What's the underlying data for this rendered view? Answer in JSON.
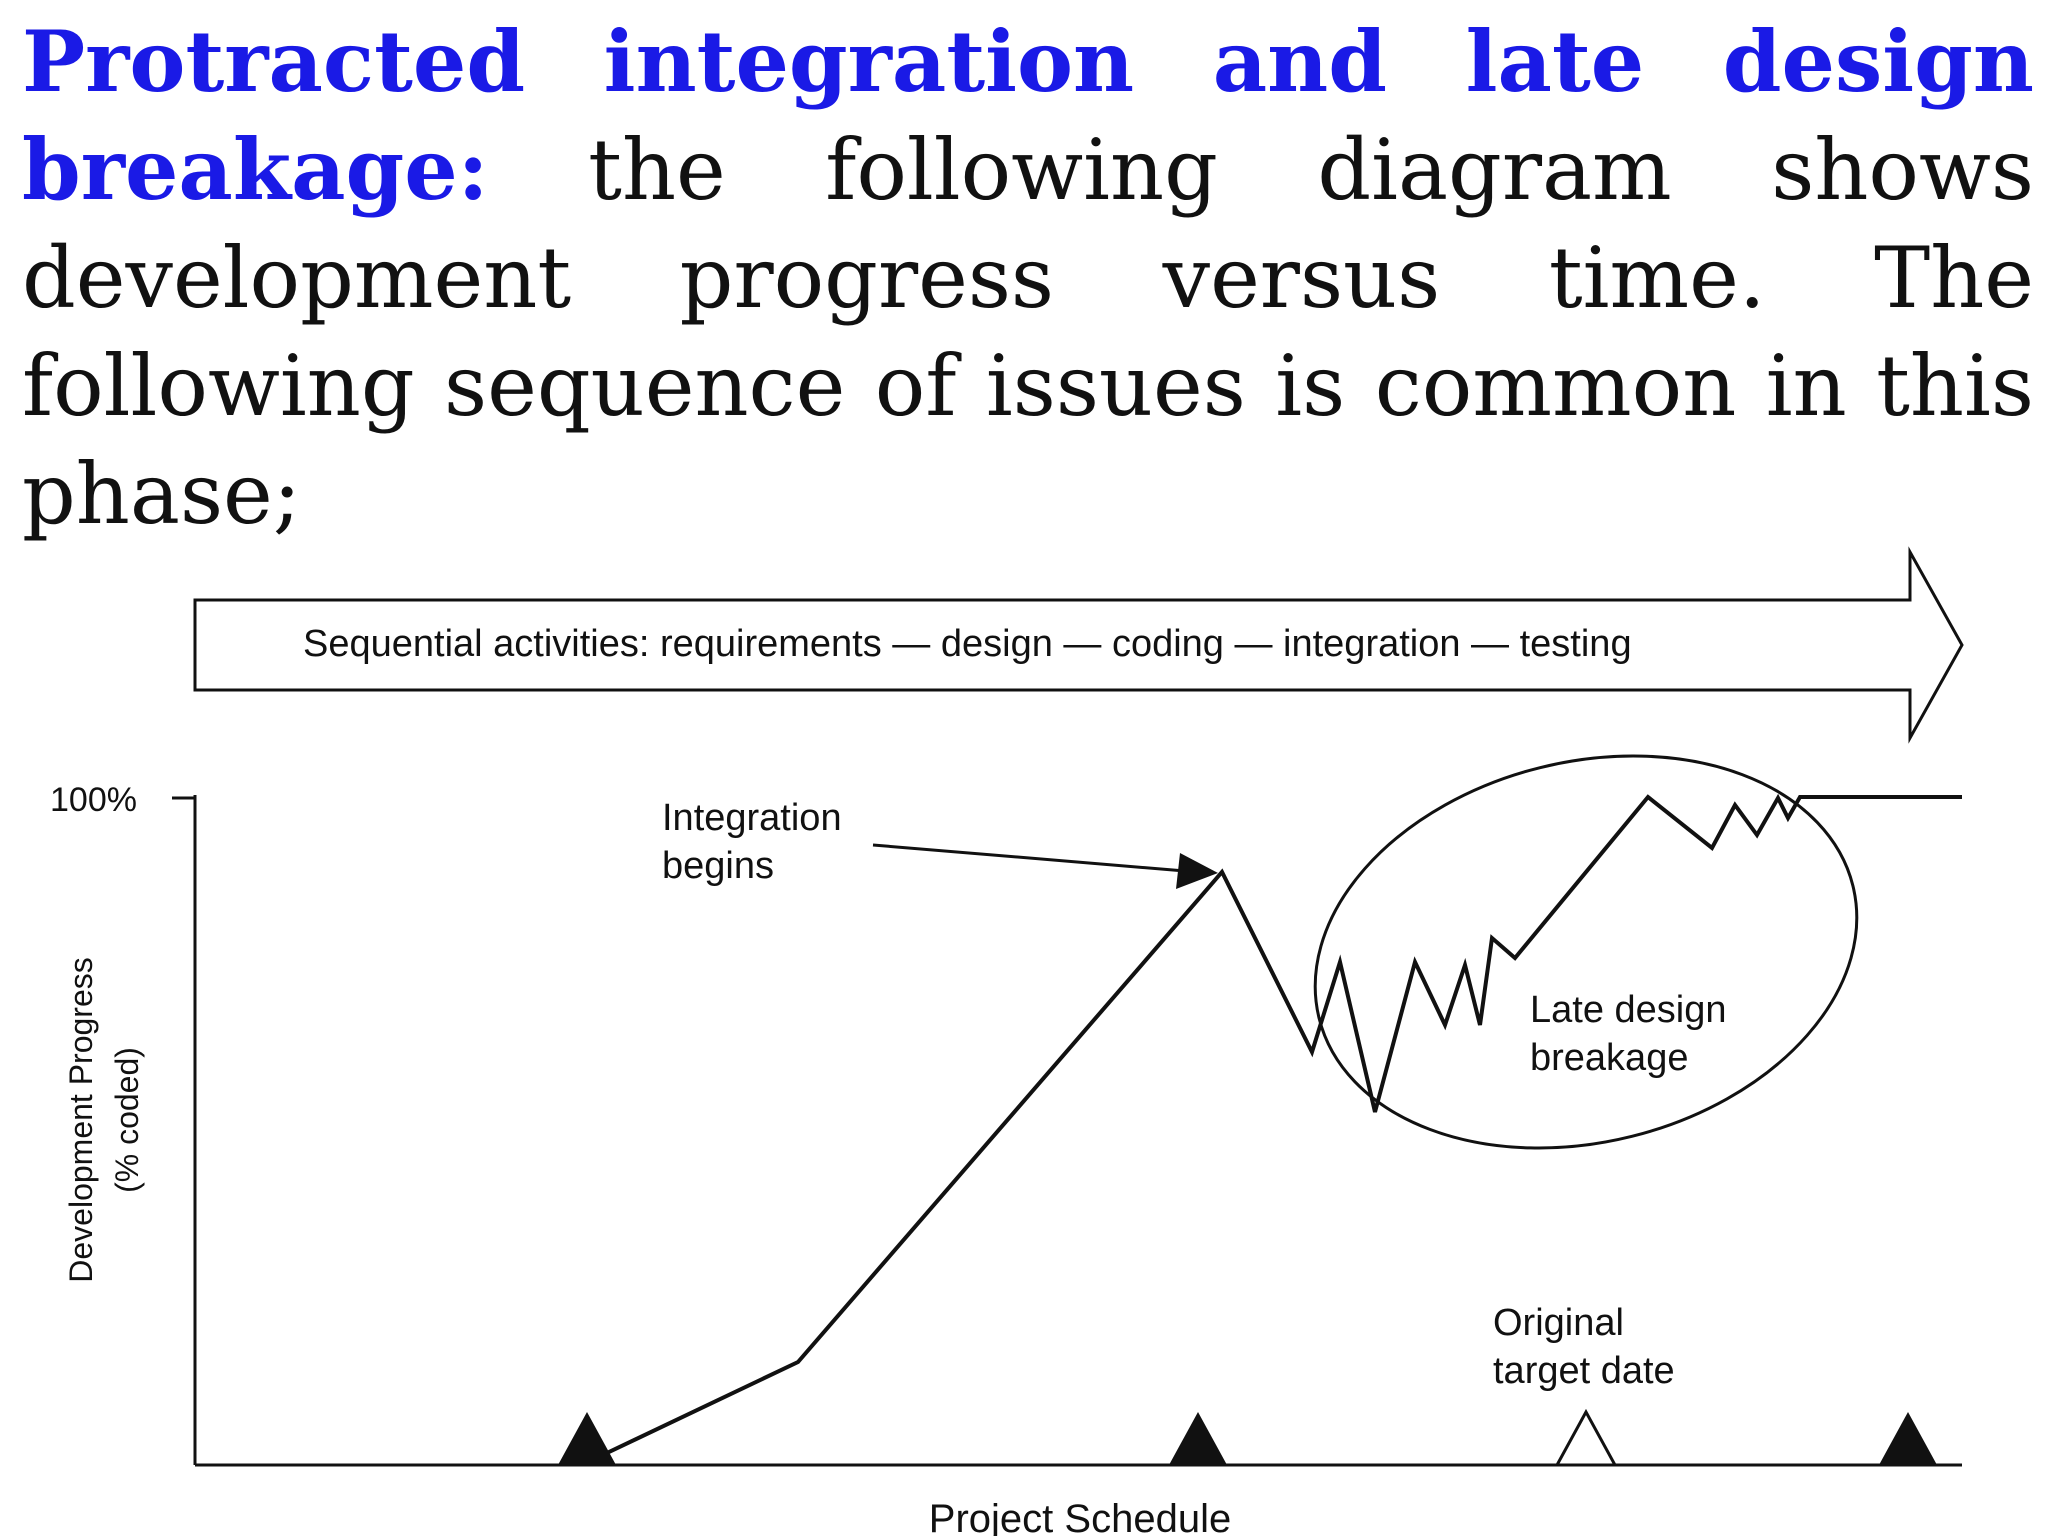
{
  "paragraph": {
    "highlight": "Protracted integration and late design breakage:",
    "body": " the following diagram shows development progress versus time. The following sequence of issues is common in this phase;"
  },
  "colors": {
    "highlight": "#1a1ae6",
    "text": "#111111",
    "lines": "#111111"
  },
  "banner": {
    "label": "Sequential activities: requirements — design — coding — integration — testing"
  },
  "axes": {
    "y_label_line1": "Development Progress",
    "y_label_line2": "(% coded)",
    "y_tick": "100%",
    "x_label": "Project Schedule"
  },
  "annotations": {
    "integration_line1": "Integration",
    "integration_line2": "begins",
    "breakage_line1": "Late design",
    "breakage_line2": "breakage",
    "target_line1": "Original",
    "target_line2": "target date"
  },
  "milestones": [
    {
      "name": "milestone-1",
      "filled": true
    },
    {
      "name": "milestone-2",
      "filled": true
    },
    {
      "name": "original-target-date",
      "filled": false
    },
    {
      "name": "milestone-4",
      "filled": true
    }
  ]
}
